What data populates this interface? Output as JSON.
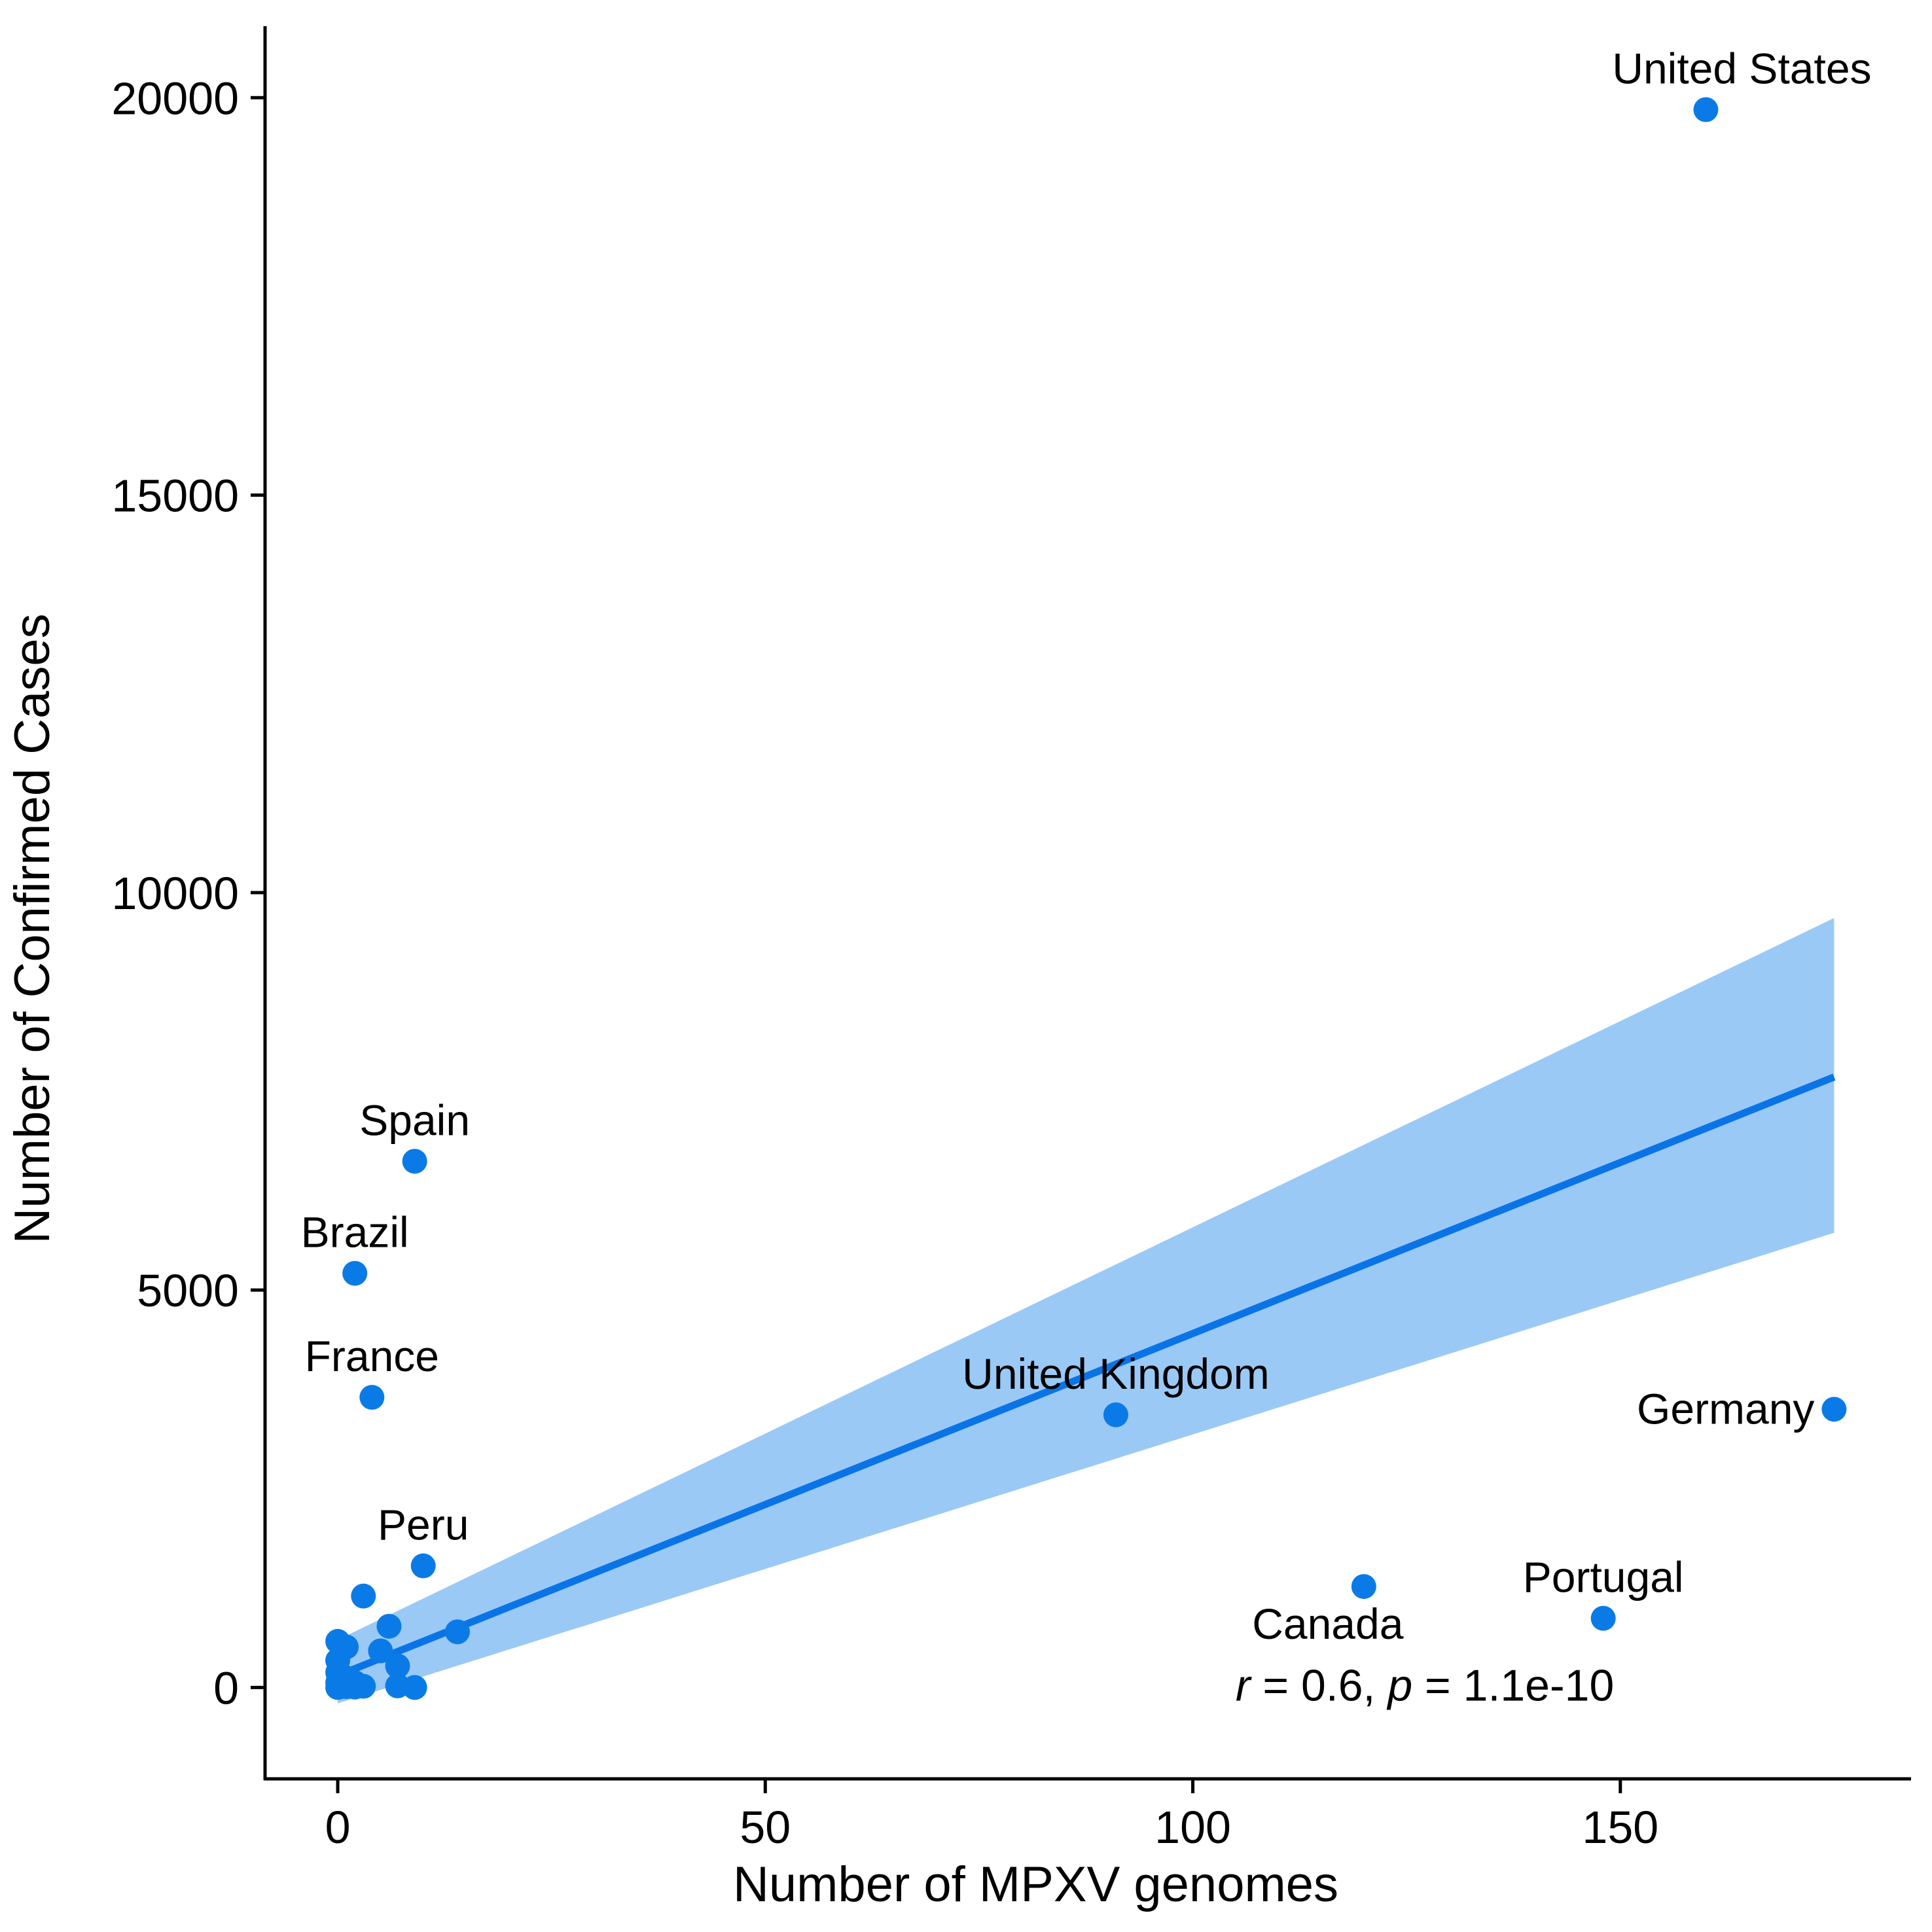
{
  "chart_data": {
    "type": "scatter",
    "title": "",
    "xlabel": "Number of MPXV genomes",
    "ylabel": "Number of Confirmed Cases",
    "xlim": [
      -8.5,
      184
    ],
    "ylim": [
      -1150,
      20900
    ],
    "x_ticks": [
      0,
      50,
      100,
      150
    ],
    "y_ticks": [
      0,
      5000,
      10000,
      15000,
      20000
    ],
    "grid": false,
    "legend": "none",
    "colors": {
      "points": "#0A7BE6",
      "fit_line": "#0A74E6",
      "confidence_band": "#9AC9F6",
      "axis": "#000000"
    },
    "series": [
      {
        "points": [
          {
            "x": 160,
            "y": 19850,
            "label": "United States",
            "label_anchor": "below-left"
          },
          {
            "x": 9,
            "y": 6620,
            "label": "Spain",
            "label_anchor": "above"
          },
          {
            "x": 2,
            "y": 5210,
            "label": "Brazil",
            "label_anchor": "above"
          },
          {
            "x": 4,
            "y": 3650,
            "label": "France",
            "label_anchor": "above"
          },
          {
            "x": 91,
            "y": 3430,
            "label": "United Kingdom",
            "label_anchor": "above"
          },
          {
            "x": 175,
            "y": 3500,
            "label": "Germany",
            "label_anchor": "left"
          },
          {
            "x": 10,
            "y": 1530,
            "label": "Peru",
            "label_anchor": "above"
          },
          {
            "x": 120,
            "y": 1270,
            "label": "Canada",
            "label_anchor": "below"
          },
          {
            "x": 148,
            "y": 870,
            "label": "Portugal",
            "label_anchor": "above"
          },
          {
            "x": 3,
            "y": 1150
          },
          {
            "x": 6,
            "y": 770
          },
          {
            "x": 14,
            "y": 700
          },
          {
            "x": 0,
            "y": 580
          },
          {
            "x": 1,
            "y": 510
          },
          {
            "x": 5,
            "y": 460
          },
          {
            "x": 7,
            "y": 270
          },
          {
            "x": 0,
            "y": 340
          },
          {
            "x": 0,
            "y": 190
          },
          {
            "x": 0,
            "y": 60
          },
          {
            "x": 0,
            "y": 0
          },
          {
            "x": 0.5,
            "y": 20
          },
          {
            "x": 1,
            "y": 10
          },
          {
            "x": 2,
            "y": 5
          },
          {
            "x": 3,
            "y": 15
          },
          {
            "x": 7,
            "y": 20
          },
          {
            "x": 9,
            "y": 0
          },
          {
            "x": 1,
            "y": 120
          },
          {
            "x": 2,
            "y": 60
          }
        ]
      }
    ],
    "fit": {
      "x_range": [
        0,
        175
      ],
      "y_at_start": 150,
      "y_at_end": 7680,
      "ci_upper_at_end": 9680,
      "ci_lower_at_end": 5720,
      "ci_upper_at_start": 600,
      "ci_lower_at_start": -200
    },
    "annotation": {
      "r_symbol": "r",
      "r_text": " = 0.6, ",
      "p_symbol": "p",
      "p_text": " = 1.1e-10",
      "x": 105,
      "y": 0
    }
  }
}
